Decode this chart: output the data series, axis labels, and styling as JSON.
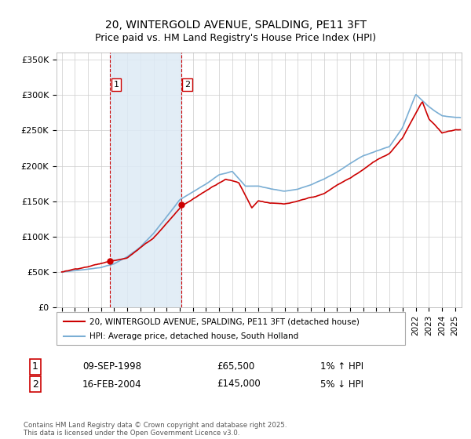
{
  "title": "20, WINTERGOLD AVENUE, SPALDING, PE11 3FT",
  "subtitle": "Price paid vs. HM Land Registry's House Price Index (HPI)",
  "ylim": [
    0,
    360000
  ],
  "yticks": [
    0,
    50000,
    100000,
    150000,
    200000,
    250000,
    300000,
    350000
  ],
  "ytick_labels": [
    "£0",
    "£50K",
    "£100K",
    "£150K",
    "£200K",
    "£250K",
    "£300K",
    "£350K"
  ],
  "xlim_start": 1994.6,
  "xlim_end": 2025.5,
  "xticks": [
    1995,
    1996,
    1997,
    1998,
    1999,
    2000,
    2001,
    2002,
    2003,
    2004,
    2005,
    2006,
    2007,
    2008,
    2009,
    2010,
    2011,
    2012,
    2013,
    2014,
    2015,
    2016,
    2017,
    2018,
    2019,
    2020,
    2021,
    2022,
    2023,
    2024,
    2025
  ],
  "purchase1_date": 1998.69,
  "purchase1_price": 65500,
  "purchase2_date": 2004.12,
  "purchase2_price": 145000,
  "legend_line1": "20, WINTERGOLD AVENUE, SPALDING, PE11 3FT (detached house)",
  "legend_line2": "HPI: Average price, detached house, South Holland",
  "annotation1_label": "1",
  "annotation1_date": "09-SEP-1998",
  "annotation1_price": "£65,500",
  "annotation1_hpi": "1% ↑ HPI",
  "annotation2_label": "2",
  "annotation2_date": "16-FEB-2004",
  "annotation2_price": "£145,000",
  "annotation2_hpi": "5% ↓ HPI",
  "footer": "Contains HM Land Registry data © Crown copyright and database right 2025.\nThis data is licensed under the Open Government Licence v3.0.",
  "line_color_red": "#cc0000",
  "line_color_blue": "#7aaed4",
  "fill_color_blue": "#ddeaf5",
  "vline_color": "#cc0000",
  "bg_color": "#ffffff",
  "grid_color": "#cccccc",
  "hpi_anchors_years": [
    1995,
    1996,
    1997,
    1998,
    1999,
    2000,
    2001,
    2002,
    2003,
    2004,
    2005,
    2006,
    2007,
    2008,
    2009,
    2010,
    2011,
    2012,
    2013,
    2014,
    2015,
    2016,
    2017,
    2018,
    2019,
    2020,
    2021,
    2022,
    2023,
    2024,
    2025
  ],
  "hpi_anchors_vals": [
    50000,
    52000,
    54000,
    57000,
    62000,
    72000,
    86000,
    105000,
    128000,
    152000,
    163000,
    174000,
    188000,
    193000,
    172000,
    172000,
    168000,
    165000,
    168000,
    174000,
    182000,
    192000,
    204000,
    215000,
    222000,
    228000,
    255000,
    302000,
    285000,
    272000,
    270000
  ],
  "price_anchors_years": [
    1995,
    1998.69,
    2000,
    2002,
    2004.12,
    2007.5,
    2008.5,
    2009.5,
    2010,
    2011,
    2012,
    2013,
    2014,
    2015,
    2016,
    2017,
    2018,
    2019,
    2020,
    2021,
    2022,
    2022.5,
    2023,
    2023.5,
    2024,
    2025
  ],
  "price_anchors_vals": [
    50000,
    65500,
    72000,
    100000,
    145000,
    185000,
    180000,
    145000,
    155000,
    152000,
    150000,
    153000,
    158000,
    163000,
    175000,
    185000,
    197000,
    210000,
    220000,
    243000,
    278000,
    295000,
    270000,
    260000,
    250000,
    255000
  ]
}
